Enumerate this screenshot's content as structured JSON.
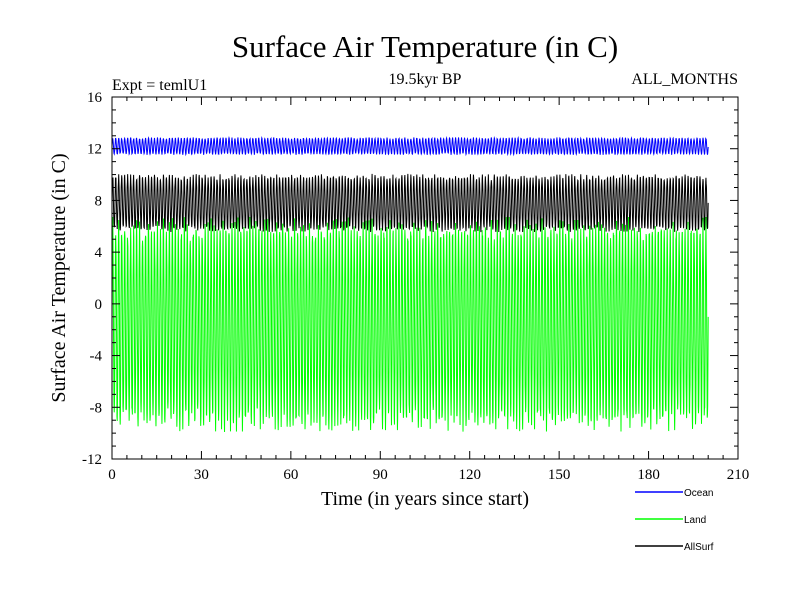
{
  "chart_data": {
    "type": "line",
    "title": "Surface Air Temperature (in C)",
    "subtitle_left": "Expt = temlU1",
    "subtitle_center": "19.5kyr BP",
    "subtitle_right": "ALL_MONTHS",
    "xlabel": "Time (in years since start)",
    "ylabel": "Surface Air Temperature (in C)",
    "xlim": [
      0,
      210
    ],
    "ylim": [
      -12,
      16
    ],
    "xticks": [
      0,
      30,
      60,
      90,
      120,
      150,
      180,
      210
    ],
    "yticks": [
      -12,
      -8,
      -4,
      0,
      4,
      8,
      12,
      16
    ],
    "x_range": [
      0,
      200
    ],
    "samples_per_year": 12,
    "series": [
      {
        "name": "Ocean",
        "color": "#0000ff",
        "seasonal_min": 11.6,
        "seasonal_max": 12.8,
        "mean": 12.2
      },
      {
        "name": "Land",
        "color": "#00ff00",
        "seasonal_min": -9.0,
        "seasonal_max": 5.8,
        "mean": -1.6
      },
      {
        "name": "AllSurf",
        "color": "#000000",
        "seasonal_min": 5.8,
        "seasonal_max": 9.8,
        "mean": 7.8
      }
    ]
  }
}
